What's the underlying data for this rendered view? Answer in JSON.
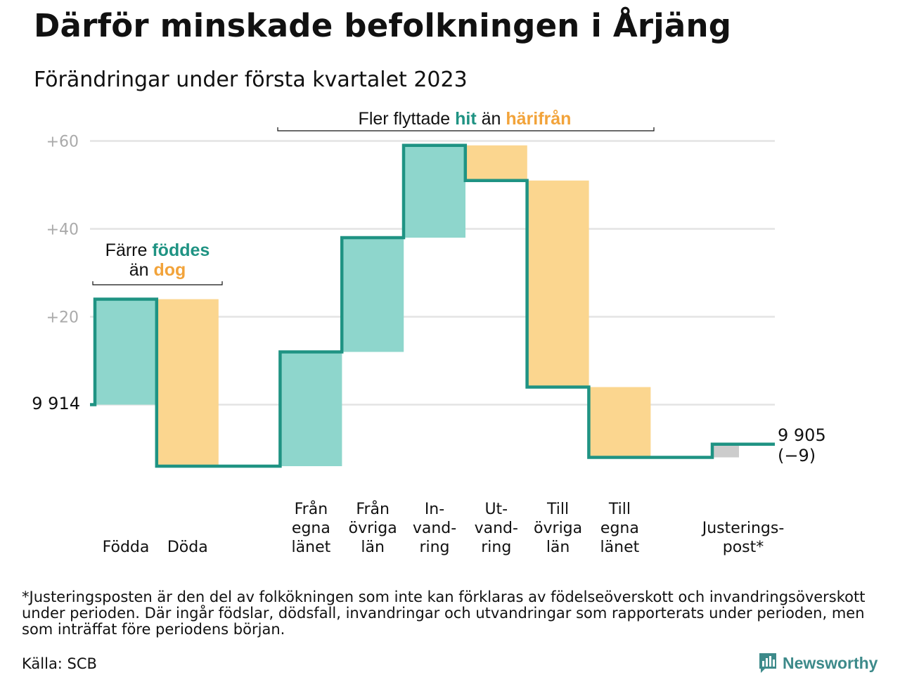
{
  "title": "Därför minskade befolkningen i Årjäng",
  "subtitle": "Förändringar under första kvartalet 2023",
  "chart_data": {
    "type": "waterfall",
    "start": {
      "label": "9 914",
      "value": 9914
    },
    "end": {
      "label1": "9 905",
      "label2": "(−9)",
      "value": 9905,
      "change": -9
    },
    "yticks": [
      {
        "offset": 20,
        "label": "+20"
      },
      {
        "offset": 40,
        "label": "+40"
      },
      {
        "offset": 60,
        "label": "+60"
      }
    ],
    "ylim": [
      -16,
      62
    ],
    "steps": [
      {
        "lines": [
          "Födda"
        ],
        "delta": 24,
        "kind": "in"
      },
      {
        "lines": [
          "Döda"
        ],
        "delta": -38,
        "kind": "out"
      },
      {
        "lines": [],
        "delta": 0,
        "kind": "gap"
      },
      {
        "lines": [
          "Från",
          "egna",
          "länet"
        ],
        "delta": 26,
        "kind": "in"
      },
      {
        "lines": [
          "Från",
          "övriga",
          "län"
        ],
        "delta": 26,
        "kind": "in"
      },
      {
        "lines": [
          "In-",
          "vand-",
          "ring"
        ],
        "delta": 21,
        "kind": "in"
      },
      {
        "lines": [
          "Ut-",
          "vand-",
          "ring"
        ],
        "delta": -8,
        "kind": "out"
      },
      {
        "lines": [
          "Till",
          "övriga",
          "län"
        ],
        "delta": -47,
        "kind": "out"
      },
      {
        "lines": [
          "Till",
          "egna",
          "länet"
        ],
        "delta": -16,
        "kind": "out"
      },
      {
        "lines": [],
        "delta": 0,
        "kind": "gap"
      },
      {
        "lines": [
          "Justerings-",
          "post*"
        ],
        "delta": 3,
        "kind": "adjust"
      }
    ],
    "annotations": {
      "births": {
        "line1_a": "Färre ",
        "line1_b": "föddes",
        "line2_a": "än ",
        "line2_b": "dog"
      },
      "moves": {
        "a": "Fler flyttade ",
        "b": "hit",
        "c": " än ",
        "d": "härifrån"
      }
    },
    "colors": {
      "in_fill": "#8ed6cc",
      "out_fill": "#fbd68f",
      "adjust_fill": "#cccccc",
      "line": "#1f9383",
      "accent_in": "#1f9383",
      "accent_out": "#f2a33a",
      "grid": "#e4e4e4",
      "tick": "#aaaaaa"
    }
  },
  "footnote": "*Justeringsposten är den del av folkökningen som inte kan förklaras av födelseöverskott och invandringsöverskott under perioden. Där ingår födslar, dödsfall, invandringar och utvandringar som rapporterats under perioden, men som inträffat före periodens början.",
  "source": "Källa: SCB",
  "brand": {
    "name": "Newsworthy",
    "icon": "newsworthy-logo-icon",
    "color": "#3d8a8a"
  }
}
